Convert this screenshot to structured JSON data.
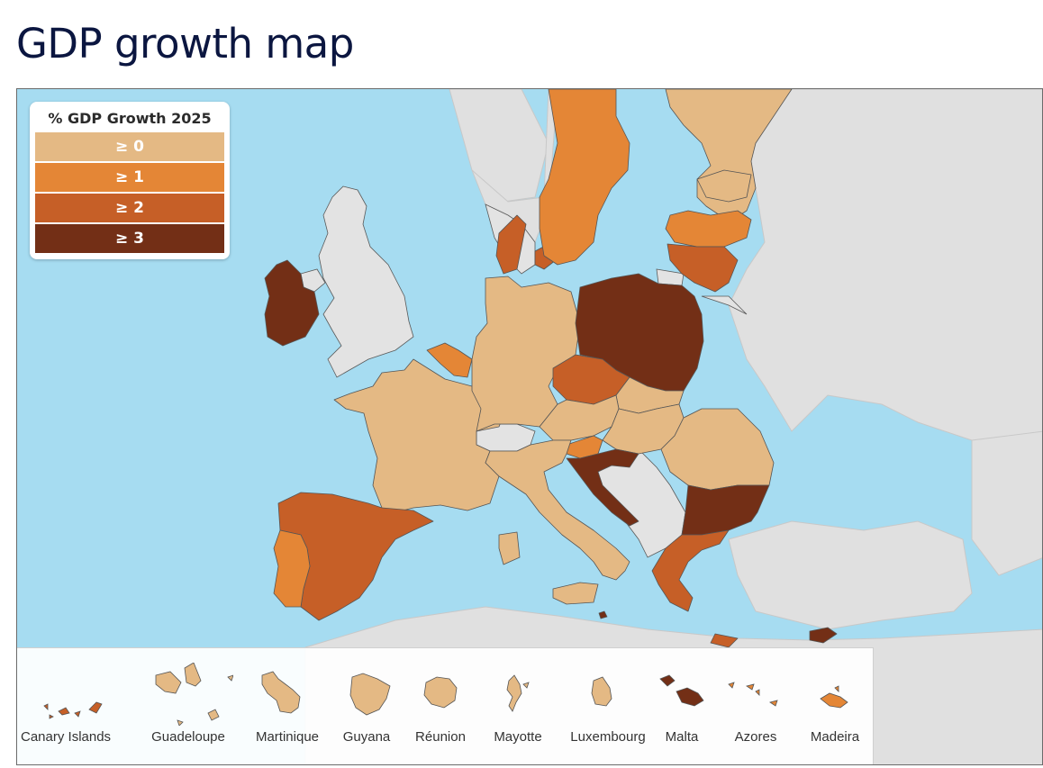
{
  "page": {
    "title": "GDP growth map"
  },
  "legend": {
    "title": "% GDP Growth 2025",
    "items": [
      {
        "label": "≥ 0",
        "color": "#e4b984"
      },
      {
        "label": "≥ 1",
        "color": "#e48636"
      },
      {
        "label": "≥ 2",
        "color": "#c65f27"
      },
      {
        "label": "≥ 3",
        "color": "#732f16"
      }
    ]
  },
  "colors": {
    "sea": "#a6dcf1",
    "non_member": "#e3e3e3",
    "outside": "#e0e0e0"
  },
  "countries": [
    {
      "name": "Ireland",
      "class": 3
    },
    {
      "name": "France",
      "class": 0
    },
    {
      "name": "Spain",
      "class": 2
    },
    {
      "name": "Portugal",
      "class": 1
    },
    {
      "name": "Belgium",
      "class": 1
    },
    {
      "name": "Netherlands",
      "class": 1
    },
    {
      "name": "Germany",
      "class": 0
    },
    {
      "name": "Denmark",
      "class": 2
    },
    {
      "name": "Sweden",
      "class": 1
    },
    {
      "name": "Finland",
      "class": 0
    },
    {
      "name": "Estonia",
      "class": 0
    },
    {
      "name": "Latvia",
      "class": 1
    },
    {
      "name": "Lithuania",
      "class": 2
    },
    {
      "name": "Poland",
      "class": 3
    },
    {
      "name": "Czechia",
      "class": 2
    },
    {
      "name": "Slovakia",
      "class": 0
    },
    {
      "name": "Austria",
      "class": 0
    },
    {
      "name": "Hungary",
      "class": 0
    },
    {
      "name": "Slovenia",
      "class": 1
    },
    {
      "name": "Croatia",
      "class": 3
    },
    {
      "name": "Italy",
      "class": 0
    },
    {
      "name": "Romania",
      "class": 0
    },
    {
      "name": "Bulgaria",
      "class": 3
    },
    {
      "name": "Greece",
      "class": 2
    },
    {
      "name": "Cyprus",
      "class": 3
    },
    {
      "name": "Malta",
      "class": 3
    },
    {
      "name": "Luxembourg",
      "class": 0
    }
  ],
  "insets": [
    {
      "label": "Canary Islands",
      "class": 2
    },
    {
      "label": "Guadeloupe",
      "class": 0
    },
    {
      "label": "Martinique",
      "class": 0
    },
    {
      "label": "Guyana",
      "class": 0
    },
    {
      "label": "Réunion",
      "class": 0
    },
    {
      "label": "Mayotte",
      "class": 0
    },
    {
      "label": "Luxembourg",
      "class": 0
    },
    {
      "label": "Malta",
      "class": 3
    },
    {
      "label": "Azores",
      "class": 1
    },
    {
      "label": "Madeira",
      "class": 1
    }
  ]
}
